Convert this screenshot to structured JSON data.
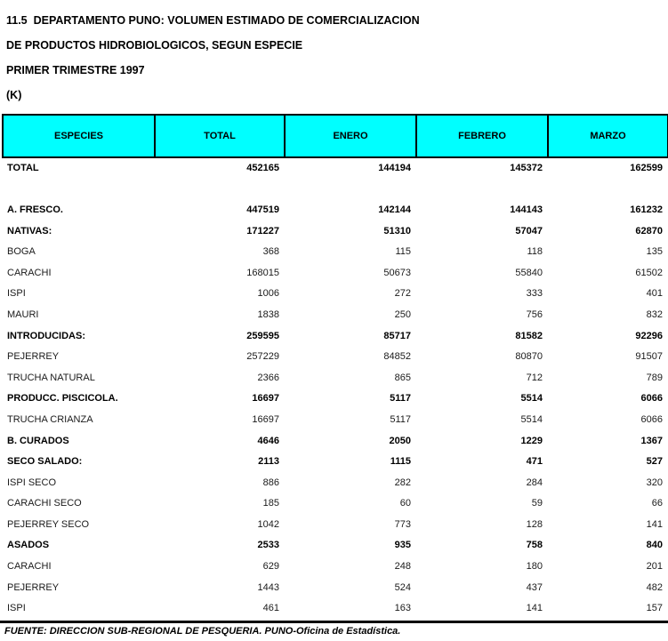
{
  "title": {
    "line1": "11.5  DEPARTAMENTO PUNO: VOLUMEN ESTIMADO DE COMERCIALIZACION",
    "line2": "DE PRODUCTOS HIDROBIOLOGICOS, SEGUN ESPECIE",
    "line3": "PRIMER TRIMESTRE 1997",
    "line4": "(K)"
  },
  "colors": {
    "header_bg": "#00ffff",
    "border": "#000000"
  },
  "table": {
    "columns": [
      "ESPECIES",
      "TOTAL",
      "ENERO",
      "FEBRERO",
      "MARZO"
    ],
    "rows": [
      {
        "label": "TOTAL",
        "bold": true,
        "values": [
          "452165",
          "144194",
          "145372",
          "162599"
        ]
      },
      {
        "label": "",
        "bold": false,
        "values": [
          "",
          "",
          "",
          ""
        ]
      },
      {
        "label": "A. FRESCO.",
        "bold": true,
        "values": [
          "447519",
          "142144",
          "144143",
          "161232"
        ]
      },
      {
        "label": "NATIVAS:",
        "bold": true,
        "values": [
          "171227",
          "51310",
          "57047",
          "62870"
        ]
      },
      {
        "label": "BOGA",
        "bold": false,
        "values": [
          "368",
          "115",
          "118",
          "135"
        ]
      },
      {
        "label": "CARACHI",
        "bold": false,
        "values": [
          "168015",
          "50673",
          "55840",
          "61502"
        ]
      },
      {
        "label": "ISPI",
        "bold": false,
        "values": [
          "1006",
          "272",
          "333",
          "401"
        ]
      },
      {
        "label": "MAURI",
        "bold": false,
        "values": [
          "1838",
          "250",
          "756",
          "832"
        ]
      },
      {
        "label": "INTRODUCIDAS:",
        "bold": true,
        "values": [
          "259595",
          "85717",
          "81582",
          "92296"
        ]
      },
      {
        "label": "PEJERREY",
        "bold": false,
        "values": [
          "257229",
          "84852",
          "80870",
          "91507"
        ]
      },
      {
        "label": "TRUCHA NATURAL",
        "bold": false,
        "values": [
          "2366",
          "865",
          "712",
          "789"
        ]
      },
      {
        "label": "PRODUCC. PISCICOLA.",
        "bold": true,
        "values": [
          "16697",
          "5117",
          "5514",
          "6066"
        ]
      },
      {
        "label": "TRUCHA CRIANZA",
        "bold": false,
        "values": [
          "16697",
          "5117",
          "5514",
          "6066"
        ]
      },
      {
        "label": "B. CURADOS",
        "bold": true,
        "values": [
          "4646",
          "2050",
          "1229",
          "1367"
        ]
      },
      {
        "label": "SECO SALADO:",
        "bold": true,
        "values": [
          "2113",
          "1115",
          "471",
          "527"
        ]
      },
      {
        "label": "ISPI SECO",
        "bold": false,
        "values": [
          "886",
          "282",
          "284",
          "320"
        ]
      },
      {
        "label": "CARACHI SECO",
        "bold": false,
        "values": [
          "185",
          "60",
          "59",
          "66"
        ]
      },
      {
        "label": "PEJERREY SECO",
        "bold": false,
        "values": [
          "1042",
          "773",
          "128",
          "141"
        ]
      },
      {
        "label": "ASADOS",
        "bold": true,
        "values": [
          "2533",
          "935",
          "758",
          "840"
        ]
      },
      {
        "label": "CARACHI",
        "bold": false,
        "values": [
          "629",
          "248",
          "180",
          "201"
        ]
      },
      {
        "label": "PEJERREY",
        "bold": false,
        "values": [
          "1443",
          "524",
          "437",
          "482"
        ]
      },
      {
        "label": "ISPI",
        "bold": false,
        "values": [
          "461",
          "163",
          "141",
          "157"
        ]
      }
    ]
  },
  "footer": {
    "source": "FUENTE: DIRECCION SUB-REGIONAL DE PESQUERIA. PUNO-Oficina de Estadística."
  }
}
